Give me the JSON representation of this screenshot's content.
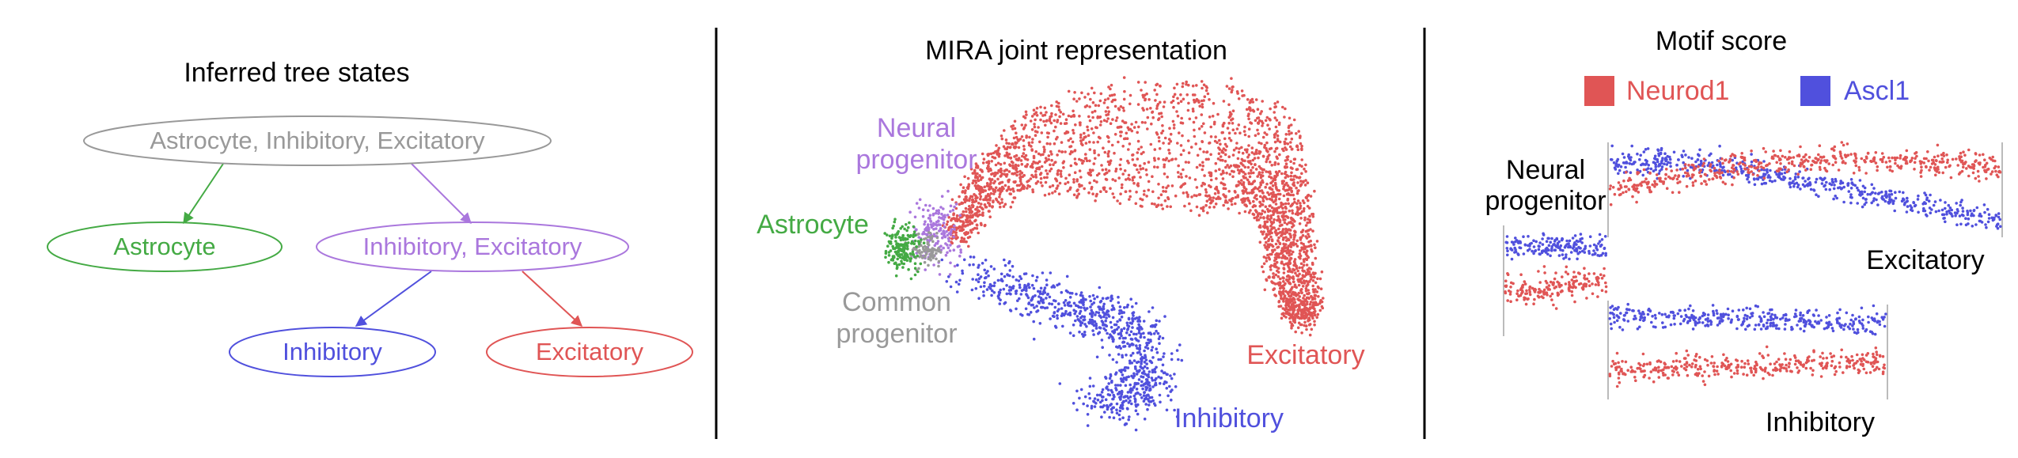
{
  "panels": {
    "tree": {
      "title": "Inferred tree states",
      "nodes": {
        "root": "Astrocyte, Inhibitory, Excitatory",
        "astrocyte": "Astrocyte",
        "inh_exc": "Inhibitory, Excitatory",
        "inhibitory": "Inhibitory",
        "excitatory": "Excitatory"
      }
    },
    "mira": {
      "title": "MIRA joint representation",
      "labels": {
        "neural_progenitor_1": "Neural",
        "neural_progenitor_2": "progenitor",
        "astrocyte": "Astrocyte",
        "common_progenitor_1": "Common",
        "common_progenitor_2": "progenitor",
        "excitatory": "Excitatory",
        "inhibitory": "Inhibitory"
      }
    },
    "motif": {
      "title": "Motif score",
      "legend": [
        {
          "name": "Neurod1",
          "color": "#e05555"
        },
        {
          "name": "Ascl1",
          "color": "#5050dd"
        }
      ],
      "labels": {
        "neural_progenitor_1": "Neural",
        "neural_progenitor_2": "progenitor",
        "excitatory": "Excitatory",
        "inhibitory": "Inhibitory"
      }
    }
  },
  "colors": {
    "gray": "#999999",
    "green": "#44aa44",
    "purple": "#aa77dd",
    "blue": "#5050dd",
    "red": "#e05555",
    "black": "#000000"
  }
}
